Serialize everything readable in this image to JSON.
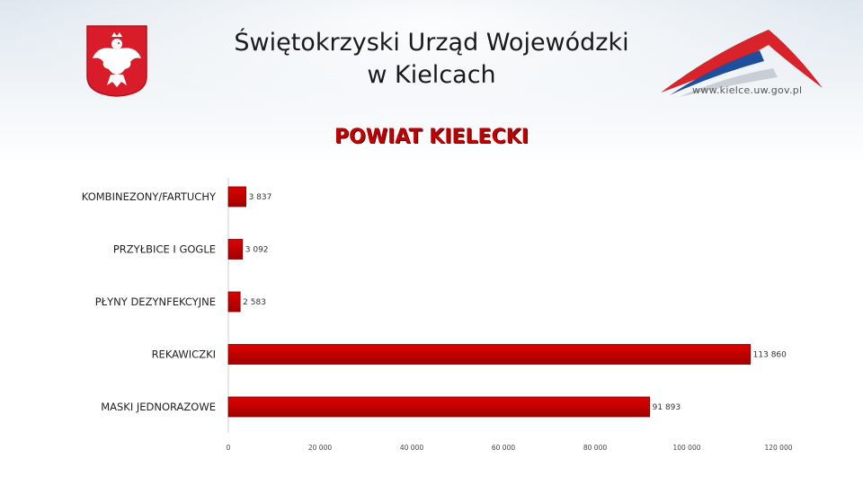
{
  "header": {
    "title_line1": "Świętokrzyski Urząd Wojewódzki",
    "title_line2": "w Kielcach",
    "website": "www.kielce.uw.gov.pl"
  },
  "colors": {
    "bar": "#e00000",
    "bar_dark": "#a00000",
    "title": "#c00000",
    "emblem_red": "#d91c2a"
  },
  "chart_data": {
    "type": "bar",
    "orientation": "horizontal",
    "title": "POWIAT KIELECKI",
    "categories": [
      "KOMBINEZONY/FARTUCHY",
      "PRZYŁBICE I GOGLE",
      "PŁYNY DEZYNFEKCYJNE",
      "REKAWICZKI",
      "MASKI JEDNORAZOWE"
    ],
    "values": [
      3837,
      3092,
      2583,
      113860,
      91893
    ],
    "value_labels": [
      "3 837",
      "3 092",
      "2 583",
      "113 860",
      "91 893"
    ],
    "xlim": [
      0,
      120000
    ],
    "xticks": [
      0,
      20000,
      40000,
      60000,
      80000,
      100000,
      120000
    ],
    "xtick_labels": [
      "0",
      "20 000",
      "40 000",
      "60 000",
      "80 000",
      "100 000",
      "120 000"
    ],
    "grid": false,
    "legend": "none"
  }
}
